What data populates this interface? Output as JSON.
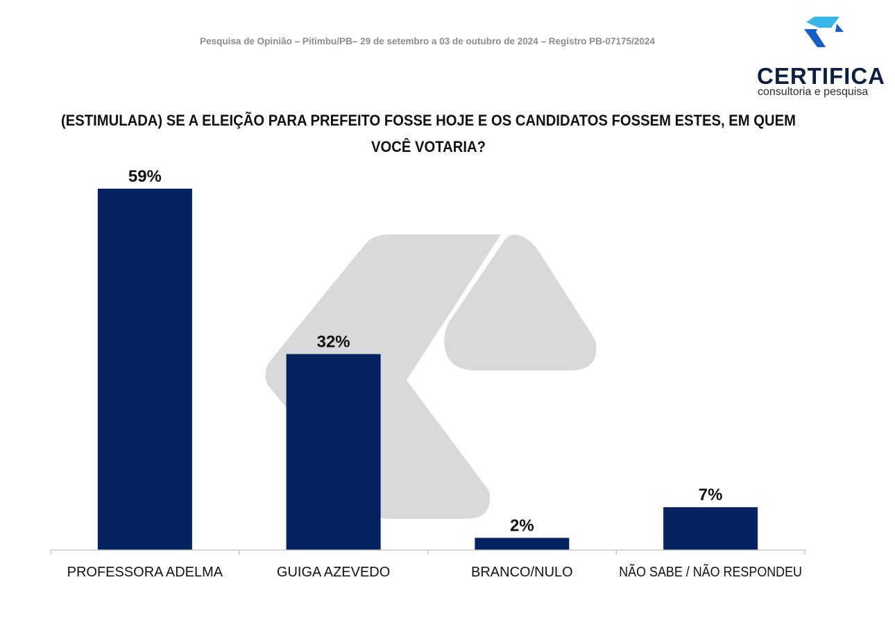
{
  "header": {
    "subtitle": "Pesquisa de Opinião – Pitimbu/PB– 29 de setembro a 03 de outubro de 2024 – Registro PB-07175/2024"
  },
  "logo": {
    "name": "CERTIFICA",
    "tagline": "consultoria e pesquisa",
    "icon": "certifica-logo-icon",
    "colors": {
      "light": "#39b6e8",
      "dark": "#1560c8",
      "text": "#0d1f3f"
    }
  },
  "chart_data": {
    "type": "bar",
    "title": "(ESTIMULADA) SE A ELEIÇÃO PARA PREFEITO FOSSE HOJE E OS CANDIDATOS FOSSEM ESTES, EM QUEM VOCÊ VOTARIA?",
    "categories": [
      "PROFESSORA ADELMA",
      "GUIGA AZEVEDO",
      "BRANCO/NULO",
      "NÃO SABE / NÃO RESPONDEU"
    ],
    "values": [
      59,
      32,
      2,
      7
    ],
    "value_labels": [
      "59%",
      "32%",
      "2%",
      "7%"
    ],
    "unit": "%",
    "ylim": [
      0,
      60
    ],
    "grid": false,
    "legend": "none",
    "bar_color": "#062263",
    "watermark_color": "#d9d9d9"
  }
}
